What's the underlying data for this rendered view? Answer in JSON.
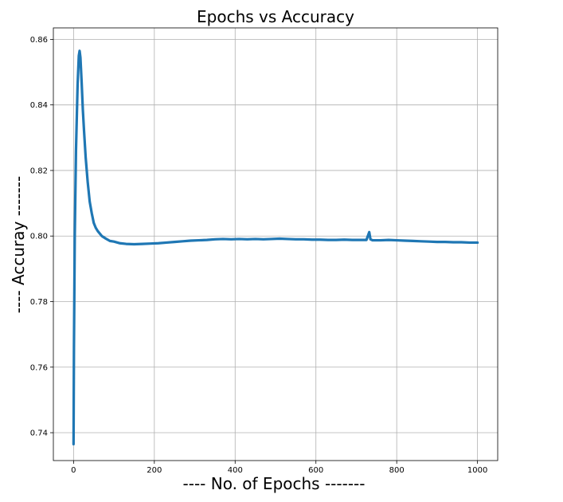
{
  "chart_data": {
    "type": "line",
    "title": "Epochs vs Accuracy",
    "xlabel": "---- No. of Epochs -------",
    "ylabel": "---- Accuray -------",
    "xlim": [
      -50,
      1050
    ],
    "ylim": [
      0.7315,
      0.8635
    ],
    "x_ticks": [
      0,
      200,
      400,
      600,
      800,
      1000
    ],
    "x_tick_labels": [
      "0",
      "200",
      "400",
      "600",
      "800",
      "1000"
    ],
    "y_ticks": [
      0.74,
      0.76,
      0.78,
      0.8,
      0.82,
      0.84,
      0.86
    ],
    "y_tick_labels": [
      "0.74",
      "0.76",
      "0.78",
      "0.80",
      "0.82",
      "0.84",
      "0.86"
    ],
    "grid": true,
    "color": "#1f77b4",
    "series": [
      {
        "x": [
          0,
          1,
          3,
          6,
          10,
          13,
          15,
          17,
          20,
          23,
          26,
          30,
          35,
          40,
          45,
          50,
          55,
          60,
          70,
          80,
          90,
          100,
          115,
          130,
          150,
          170,
          190,
          210,
          230,
          250,
          270,
          290,
          310,
          330,
          350,
          370,
          390,
          410,
          430,
          450,
          470,
          490,
          510,
          530,
          550,
          570,
          590,
          610,
          630,
          650,
          670,
          690,
          710,
          725,
          732,
          735,
          740,
          760,
          780,
          800,
          820,
          840,
          860,
          880,
          900,
          920,
          940,
          960,
          980,
          1000
        ],
        "y": [
          0.7365,
          0.766,
          0.8,
          0.826,
          0.846,
          0.855,
          0.8565,
          0.8545,
          0.847,
          0.8385,
          0.832,
          0.824,
          0.8165,
          0.8105,
          0.807,
          0.804,
          0.8025,
          0.8015,
          0.8,
          0.7992,
          0.7985,
          0.7983,
          0.7978,
          0.7976,
          0.7975,
          0.7976,
          0.7977,
          0.7978,
          0.798,
          0.7982,
          0.7984,
          0.7986,
          0.7987,
          0.7988,
          0.799,
          0.7991,
          0.799,
          0.7991,
          0.799,
          0.7991,
          0.799,
          0.7991,
          0.7992,
          0.7991,
          0.799,
          0.799,
          0.7989,
          0.7989,
          0.7988,
          0.7988,
          0.7989,
          0.7988,
          0.7988,
          0.7988,
          0.8012,
          0.799,
          0.7987,
          0.7987,
          0.7988,
          0.7987,
          0.7986,
          0.7985,
          0.7984,
          0.7983,
          0.7982,
          0.7982,
          0.7981,
          0.7981,
          0.798,
          0.798
        ]
      }
    ]
  }
}
